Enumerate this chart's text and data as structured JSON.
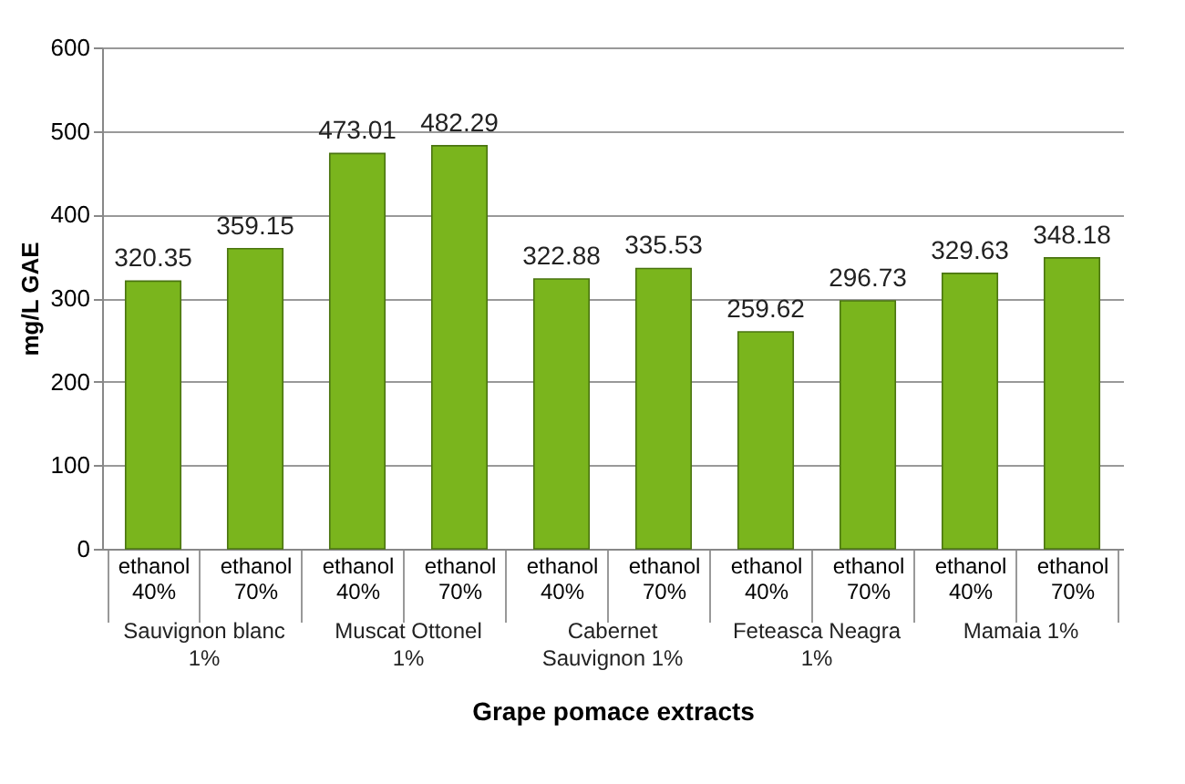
{
  "chart_data": {
    "type": "bar",
    "xlabel": "Grape pomace extracts",
    "ylabel": "mg/L GAE",
    "categories": [
      "ethanol 40%",
      "ethanol 70%",
      "ethanol 40%",
      "ethanol 70%",
      "ethanol 40%",
      "ethanol 70%",
      "ethanol 40%",
      "ethanol 70%",
      "ethanol 40%",
      "ethanol 70%"
    ],
    "values": [
      320.35,
      359.15,
      473.01,
      482.29,
      322.88,
      335.53,
      259.62,
      296.73,
      329.63,
      348.18
    ],
    "color": "#7ab51d",
    "ylim": [
      0,
      600
    ],
    "yticks": [
      0,
      100,
      200,
      300,
      400,
      500,
      600
    ],
    "grid": "y",
    "data_labels": true,
    "annotations": [
      "Sauvignon blanc 1%",
      "Muscat Ottonel 1%",
      "Cabernet Sauvignon 1%",
      "Feteasca Neagra 1%",
      "Mamaia 1%"
    ]
  }
}
